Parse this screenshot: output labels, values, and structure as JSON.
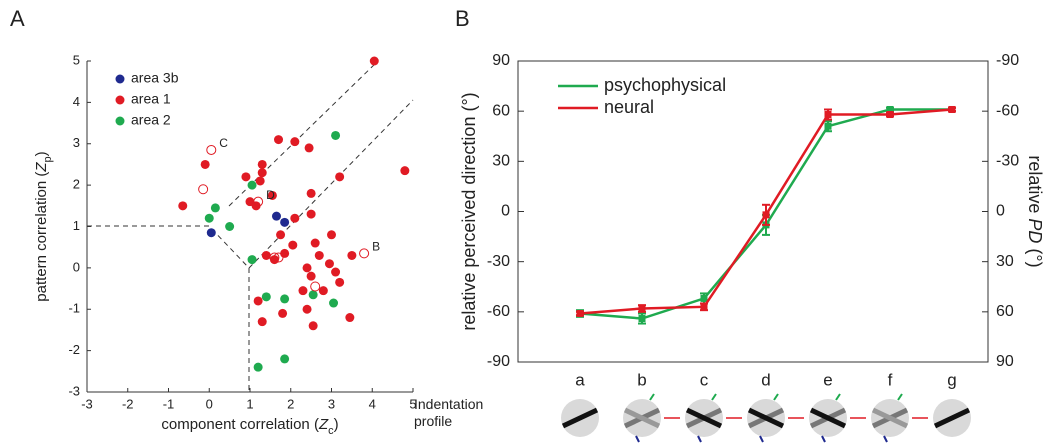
{
  "chart_data": [
    {
      "type": "scatter",
      "panel": "A",
      "xlabel": [
        "component correlation (",
        "Z",
        "c",
        ")"
      ],
      "ylabel": [
        "pattern correlation (",
        "Z",
        "p",
        ")"
      ],
      "xlim": [
        -3,
        5
      ],
      "ylim": [
        -3,
        5
      ],
      "xticks": [
        -3,
        -2,
        -1,
        0,
        1,
        2,
        3,
        4,
        5
      ],
      "yticks": [
        -3,
        -2,
        -1,
        0,
        1,
        2,
        3,
        4,
        5
      ],
      "legend": "upper left",
      "series": [
        {
          "name": "area 3b",
          "color": "#1f2a8f",
          "x": [
            0.05,
            1.65,
            1.85
          ],
          "values": [
            0.85,
            1.25,
            1.1
          ]
        },
        {
          "name": "area 1",
          "color": "#e01b24",
          "x": [
            -0.65,
            -0.1,
            0.9,
            1.0,
            1.3,
            1.3,
            1.25,
            1.55,
            1.15,
            1.7,
            2.1,
            2.45,
            3.2,
            2.5,
            2.1,
            2.5,
            1.75,
            2.05,
            2.6,
            3.0,
            1.4,
            1.6,
            1.85,
            2.4,
            2.7,
            2.95,
            3.5,
            3.2,
            2.3,
            2.5,
            2.8,
            1.2,
            1.3,
            1.8,
            2.4,
            2.55,
            3.45,
            4.8,
            4.05,
            3.1
          ],
          "values": [
            1.5,
            2.5,
            2.2,
            1.6,
            2.5,
            2.3,
            2.1,
            1.75,
            1.5,
            3.1,
            3.05,
            2.9,
            2.2,
            1.8,
            1.2,
            1.3,
            0.8,
            0.55,
            0.6,
            0.8,
            0.3,
            0.2,
            0.35,
            0.0,
            0.3,
            0.1,
            0.3,
            -0.35,
            -0.55,
            -0.2,
            -0.55,
            -0.8,
            -1.3,
            -1.1,
            -1.0,
            -1.4,
            -1.2,
            2.35,
            5.0,
            -0.1
          ]
        },
        {
          "name": "area 2",
          "color": "#1faa4f",
          "x": [
            3.1,
            1.05,
            0.15,
            0.0,
            0.5,
            1.05,
            1.4,
            1.85,
            2.55,
            3.05,
            1.2,
            1.85
          ],
          "values": [
            3.2,
            2.0,
            1.45,
            1.2,
            1.0,
            0.2,
            -0.7,
            -0.75,
            -0.65,
            -0.85,
            -2.4,
            -2.2
          ]
        }
      ],
      "open_points": {
        "color": "#e01b24",
        "x": [
          0.05,
          1.2,
          3.8,
          1.6,
          1.7,
          2.6,
          -0.15
        ],
        "values": [
          2.85,
          1.6,
          0.35,
          0.25,
          0.25,
          -0.45,
          1.9
        ],
        "labels": [
          "C",
          "D",
          "B",
          null,
          null,
          null,
          null
        ]
      }
    },
    {
      "type": "line",
      "panel": "B",
      "ylabel": "relative perceived direction (°)",
      "y2label": [
        "relative ",
        "PD",
        " (°)"
      ],
      "categories": [
        "a",
        "b",
        "c",
        "d",
        "e",
        "f",
        "g"
      ],
      "ylim": [
        -90,
        90
      ],
      "yticks": [
        -90,
        -60,
        -30,
        0,
        30,
        60,
        90
      ],
      "y2lim": [
        90,
        -90
      ],
      "y2ticks": [
        -90,
        -60,
        -30,
        0,
        30,
        60,
        90
      ],
      "legend": "upper left",
      "series": [
        {
          "name": "psychophysical",
          "color": "#1faa4f",
          "values": [
            -61,
            -64,
            -52,
            -8,
            51,
            61,
            61
          ],
          "errors": [
            2,
            3,
            3,
            6,
            3,
            1,
            1
          ]
        },
        {
          "name": "neural",
          "color": "#e01b24",
          "values": [
            -61,
            -58,
            -57,
            -2,
            58,
            58,
            61
          ],
          "errors": [
            1,
            2,
            2,
            6,
            3,
            1,
            1
          ]
        }
      ],
      "profile_label": [
        "Indentation",
        "profile"
      ]
    }
  ]
}
